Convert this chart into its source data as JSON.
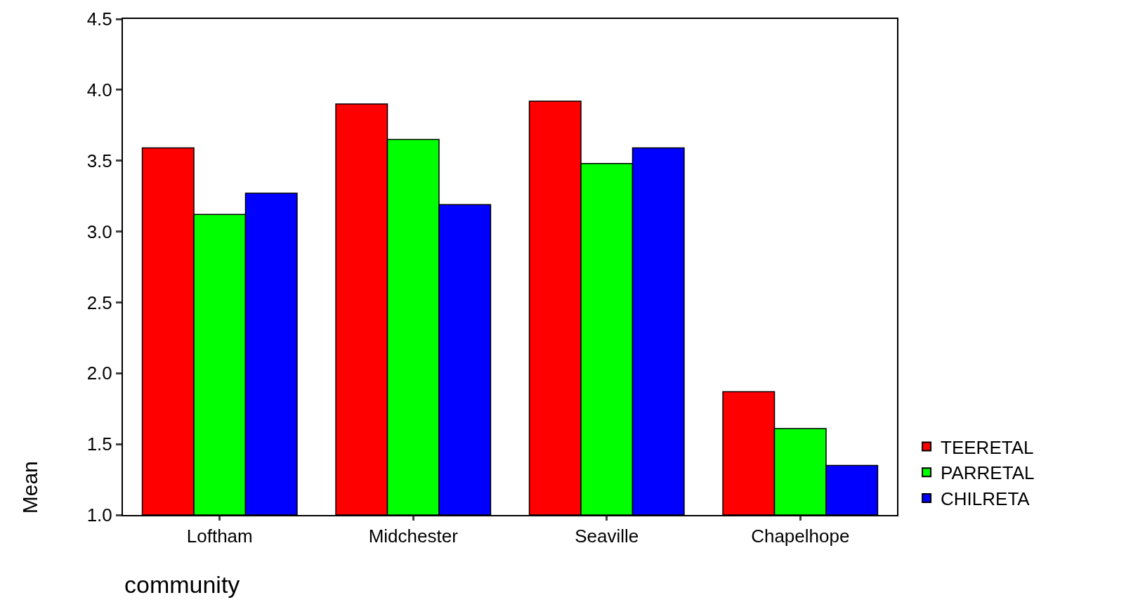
{
  "chart_data": {
    "type": "bar",
    "xlabel": "community",
    "ylabel": "Mean",
    "categories": [
      "Loftham",
      "Midchester",
      "Seaville",
      "Chapelhope"
    ],
    "series": [
      {
        "name": "TEERETAL",
        "color": "#ff0000",
        "values": [
          3.59,
          3.9,
          3.92,
          1.87
        ]
      },
      {
        "name": "PARRETAL",
        "color": "#00ff00",
        "values": [
          3.12,
          3.65,
          3.48,
          1.61
        ]
      },
      {
        "name": "CHILRETA",
        "color": "#0000ff",
        "values": [
          3.27,
          3.19,
          3.59,
          1.35
        ]
      }
    ],
    "ylim": [
      1.0,
      4.5
    ],
    "yticks": [
      {
        "value": 1.0,
        "label": "1.0"
      },
      {
        "value": 1.5,
        "label": "1.5"
      },
      {
        "value": 2.0,
        "label": "2.0"
      },
      {
        "value": 2.5,
        "label": "2.5"
      },
      {
        "value": 3.0,
        "label": "3.0"
      },
      {
        "value": 3.5,
        "label": "3.5"
      },
      {
        "value": 4.0,
        "label": "4.0"
      },
      {
        "value": 4.5,
        "label": "4.5"
      }
    ],
    "legend": "bottom right"
  }
}
